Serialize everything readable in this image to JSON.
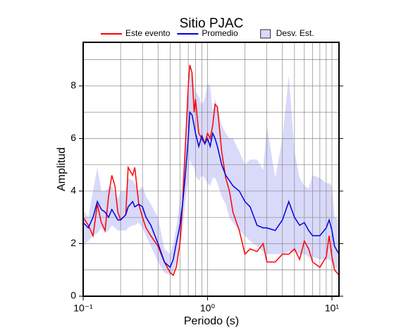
{
  "chart_data": {
    "type": "line",
    "title": "Sitio PJAC",
    "x_label": "Periodo (s)",
    "y_label": "Amplitud",
    "x_scale": "log",
    "xlim": [
      0.1,
      11.4
    ],
    "ylim": [
      0,
      9.66
    ],
    "xticks": [
      {
        "value": 0.1,
        "label": "10⁻¹"
      },
      {
        "value": 1,
        "label": "10⁰"
      },
      {
        "value": 10,
        "label": "10¹"
      }
    ],
    "xminor": [
      0.2,
      0.3,
      0.4,
      0.5,
      0.6,
      0.7,
      0.8,
      0.9,
      2,
      3,
      4,
      5,
      6,
      7,
      8,
      9
    ],
    "yticks": [
      0,
      2,
      4,
      6,
      8
    ],
    "yminor": [
      1,
      3,
      5,
      7,
      9
    ],
    "grid": true,
    "x": [
      0.1,
      0.11,
      0.12,
      0.13,
      0.14,
      0.15,
      0.16,
      0.17,
      0.18,
      0.19,
      0.2,
      0.22,
      0.23,
      0.25,
      0.26,
      0.28,
      0.3,
      0.32,
      0.35,
      0.4,
      0.45,
      0.5,
      0.53,
      0.56,
      0.6,
      0.63,
      0.66,
      0.7,
      0.72,
      0.75,
      0.78,
      0.8,
      0.85,
      0.9,
      0.95,
      1.0,
      1.05,
      1.1,
      1.15,
      1.2,
      1.3,
      1.4,
      1.5,
      1.6,
      1.8,
      2.0,
      2.2,
      2.5,
      2.8,
      3.0,
      3.5,
      4,
      4.5,
      5,
      5.5,
      6,
      6.5,
      7,
      8,
      9,
      9.5,
      10,
      10.5,
      11.4
    ],
    "band": {
      "name": "Desv. Est.",
      "color": "#d9d9fa",
      "lower": [
        1.9,
        2.1,
        2.3,
        2.4,
        2.6,
        2.4,
        2.5,
        2.7,
        2.6,
        2.5,
        2.5,
        2.5,
        2.6,
        2.7,
        2.7,
        2.8,
        2.6,
        2.3,
        1.9,
        1.3,
        0.9,
        0.8,
        0.9,
        1.3,
        1.9,
        2.5,
        3.5,
        4.5,
        5.2,
        5.0,
        4.9,
        4.6,
        4.4,
        4.6,
        4.5,
        4.3,
        4.2,
        4.5,
        4.5,
        4.3,
        3.8,
        3.5,
        3.0,
        2.8,
        2.5,
        2.3,
        2.1,
        1.9,
        1.7,
        1.6,
        1.6,
        1.6,
        1.7,
        1.7,
        1.6,
        1.6,
        1.5,
        1.5,
        1.4,
        1.4,
        1.4,
        1.3,
        1.1,
        1.0
      ],
      "upper": [
        3.3,
        3.0,
        4.0,
        4.9,
        4.0,
        4.0,
        4.1,
        4.2,
        3.9,
        3.7,
        4.0,
        4.0,
        4.5,
        4.4,
        4.3,
        4.0,
        4.2,
        3.8,
        3.5,
        3.0,
        1.8,
        1.6,
        2.0,
        2.6,
        3.6,
        4.5,
        6.0,
        7.5,
        8.3,
        8.6,
        8.0,
        7.8,
        7.6,
        7.3,
        7.5,
        8.1,
        8.0,
        7.0,
        7.5,
        7.2,
        6.5,
        6.2,
        6.0,
        6.0,
        5.5,
        5.0,
        5.2,
        5.2,
        4.8,
        6.5,
        4.5,
        6.0,
        8.4,
        5.5,
        4.5,
        4.2,
        4.1,
        4.6,
        4.5,
        4.3,
        4.3,
        4.2,
        3.0,
        2.9
      ]
    },
    "series": [
      {
        "name": "Este evento",
        "color": "#ff0000",
        "values": [
          3.0,
          2.7,
          2.3,
          3.5,
          2.8,
          2.5,
          3.8,
          4.6,
          4.2,
          3.2,
          2.9,
          3.1,
          4.9,
          4.6,
          4.9,
          3.5,
          3.0,
          2.6,
          2.3,
          1.9,
          1.3,
          0.9,
          0.8,
          1.1,
          2.0,
          3.5,
          5.5,
          8.0,
          8.8,
          8.5,
          7.0,
          7.5,
          6.2,
          6.0,
          5.8,
          6.2,
          6.0,
          6.5,
          7.3,
          7.2,
          5.5,
          4.5,
          4.0,
          3.2,
          2.5,
          1.6,
          1.8,
          1.7,
          2.0,
          1.3,
          1.3,
          1.6,
          1.6,
          1.8,
          1.4,
          2.1,
          1.8,
          1.3,
          1.1,
          1.5,
          2.3,
          1.5,
          1.0,
          0.8
        ]
      },
      {
        "name": "Promedio",
        "color": "#0000dd",
        "values": [
          2.8,
          2.6,
          3.0,
          3.6,
          3.3,
          3.2,
          3.0,
          3.3,
          3.1,
          2.9,
          2.9,
          3.1,
          3.4,
          3.6,
          3.4,
          3.5,
          3.4,
          3.0,
          2.7,
          2.0,
          1.3,
          1.1,
          1.4,
          2.0,
          2.7,
          3.5,
          4.5,
          6.0,
          7.0,
          6.9,
          6.5,
          6.2,
          5.7,
          6.1,
          5.8,
          6.0,
          5.7,
          6.2,
          6.0,
          5.7,
          5.0,
          4.6,
          4.4,
          4.2,
          4.0,
          3.6,
          3.4,
          2.7,
          2.6,
          2.6,
          2.5,
          2.9,
          3.6,
          3.0,
          2.7,
          2.8,
          2.5,
          2.3,
          2.3,
          2.6,
          2.9,
          2.5,
          1.9,
          1.6
        ]
      }
    ]
  }
}
